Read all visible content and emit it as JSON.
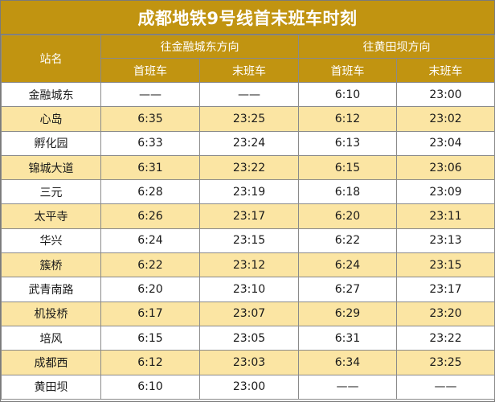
{
  "title": "成都地铁9号线首末班车时刻",
  "header": {
    "station_col": "站名",
    "dir1": "往金融城东方向",
    "dir2": "往黄田坝方向",
    "first": "首班车",
    "last": "末班车"
  },
  "colors": {
    "header_bg": "#c19411",
    "stripe_bg": "#fbe5a3"
  },
  "rows": [
    {
      "station": "金融城东",
      "d1_first": "——",
      "d1_last": "——",
      "d2_first": "6:10",
      "d2_last": "23:00"
    },
    {
      "station": "心岛",
      "d1_first": "6:35",
      "d1_last": "23:25",
      "d2_first": "6:12",
      "d2_last": "23:02"
    },
    {
      "station": "孵化园",
      "d1_first": "6:33",
      "d1_last": "23:24",
      "d2_first": "6:13",
      "d2_last": "23:04"
    },
    {
      "station": "锦城大道",
      "d1_first": "6:31",
      "d1_last": "23:22",
      "d2_first": "6:15",
      "d2_last": "23:06"
    },
    {
      "station": "三元",
      "d1_first": "6:28",
      "d1_last": "23:19",
      "d2_first": "6:18",
      "d2_last": "23:09"
    },
    {
      "station": "太平寺",
      "d1_first": "6:26",
      "d1_last": "23:17",
      "d2_first": "6:20",
      "d2_last": "23:11"
    },
    {
      "station": "华兴",
      "d1_first": "6:24",
      "d1_last": "23:15",
      "d2_first": "6:22",
      "d2_last": "23:13"
    },
    {
      "station": "簇桥",
      "d1_first": "6:22",
      "d1_last": "23:12",
      "d2_first": "6:24",
      "d2_last": "23:15"
    },
    {
      "station": "武青南路",
      "d1_first": "6:20",
      "d1_last": "23:10",
      "d2_first": "6:27",
      "d2_last": "23:17"
    },
    {
      "station": "机投桥",
      "d1_first": "6:17",
      "d1_last": "23:07",
      "d2_first": "6:29",
      "d2_last": "23:20"
    },
    {
      "station": "培风",
      "d1_first": "6:15",
      "d1_last": "23:05",
      "d2_first": "6:31",
      "d2_last": "23:22"
    },
    {
      "station": "成都西",
      "d1_first": "6:12",
      "d1_last": "23:03",
      "d2_first": "6:34",
      "d2_last": "23:25"
    },
    {
      "station": "黄田坝",
      "d1_first": "6:10",
      "d1_last": "23:00",
      "d2_first": "——",
      "d2_last": "——"
    }
  ]
}
